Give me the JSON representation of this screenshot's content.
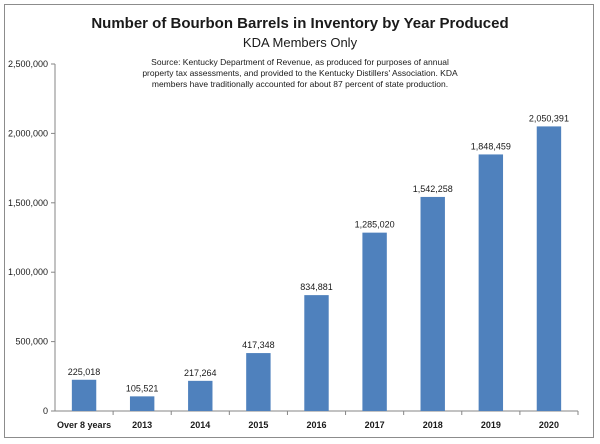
{
  "chart_data": {
    "type": "bar",
    "title": "Number of Bourbon Barrels in Inventory by Year Produced",
    "subtitle": "KDA Members Only",
    "note_lines": [
      "Source: Kentucky Department of Revenue, as produced for purposes of annual",
      "property tax assessments, and provided to the Kentucky Distillers' Association. KDA",
      "members have traditionally accounted for about 87 percent of state production."
    ],
    "categories": [
      "Over 8 years",
      "2013",
      "2014",
      "2015",
      "2016",
      "2017",
      "2018",
      "2019",
      "2020"
    ],
    "values": [
      225018,
      105521,
      217264,
      417348,
      834881,
      1285020,
      1542258,
      1848459,
      2050391
    ],
    "value_labels": [
      "225,018",
      "105,521",
      "217,264",
      "417,348",
      "834,881",
      "1,285,020",
      "1,542,258",
      "1,848,459",
      "2,050,391"
    ],
    "ylim": [
      0,
      2500000
    ],
    "yticks": [
      0,
      500000,
      1000000,
      1500000,
      2000000,
      2500000
    ],
    "ytick_labels": [
      "0",
      "500,000",
      "1,000,000",
      "1,500,000",
      "2,000,000",
      "2,500,000"
    ],
    "xlabel": "",
    "ylabel": "",
    "grid": false,
    "bar_color": "#4f81bd"
  }
}
